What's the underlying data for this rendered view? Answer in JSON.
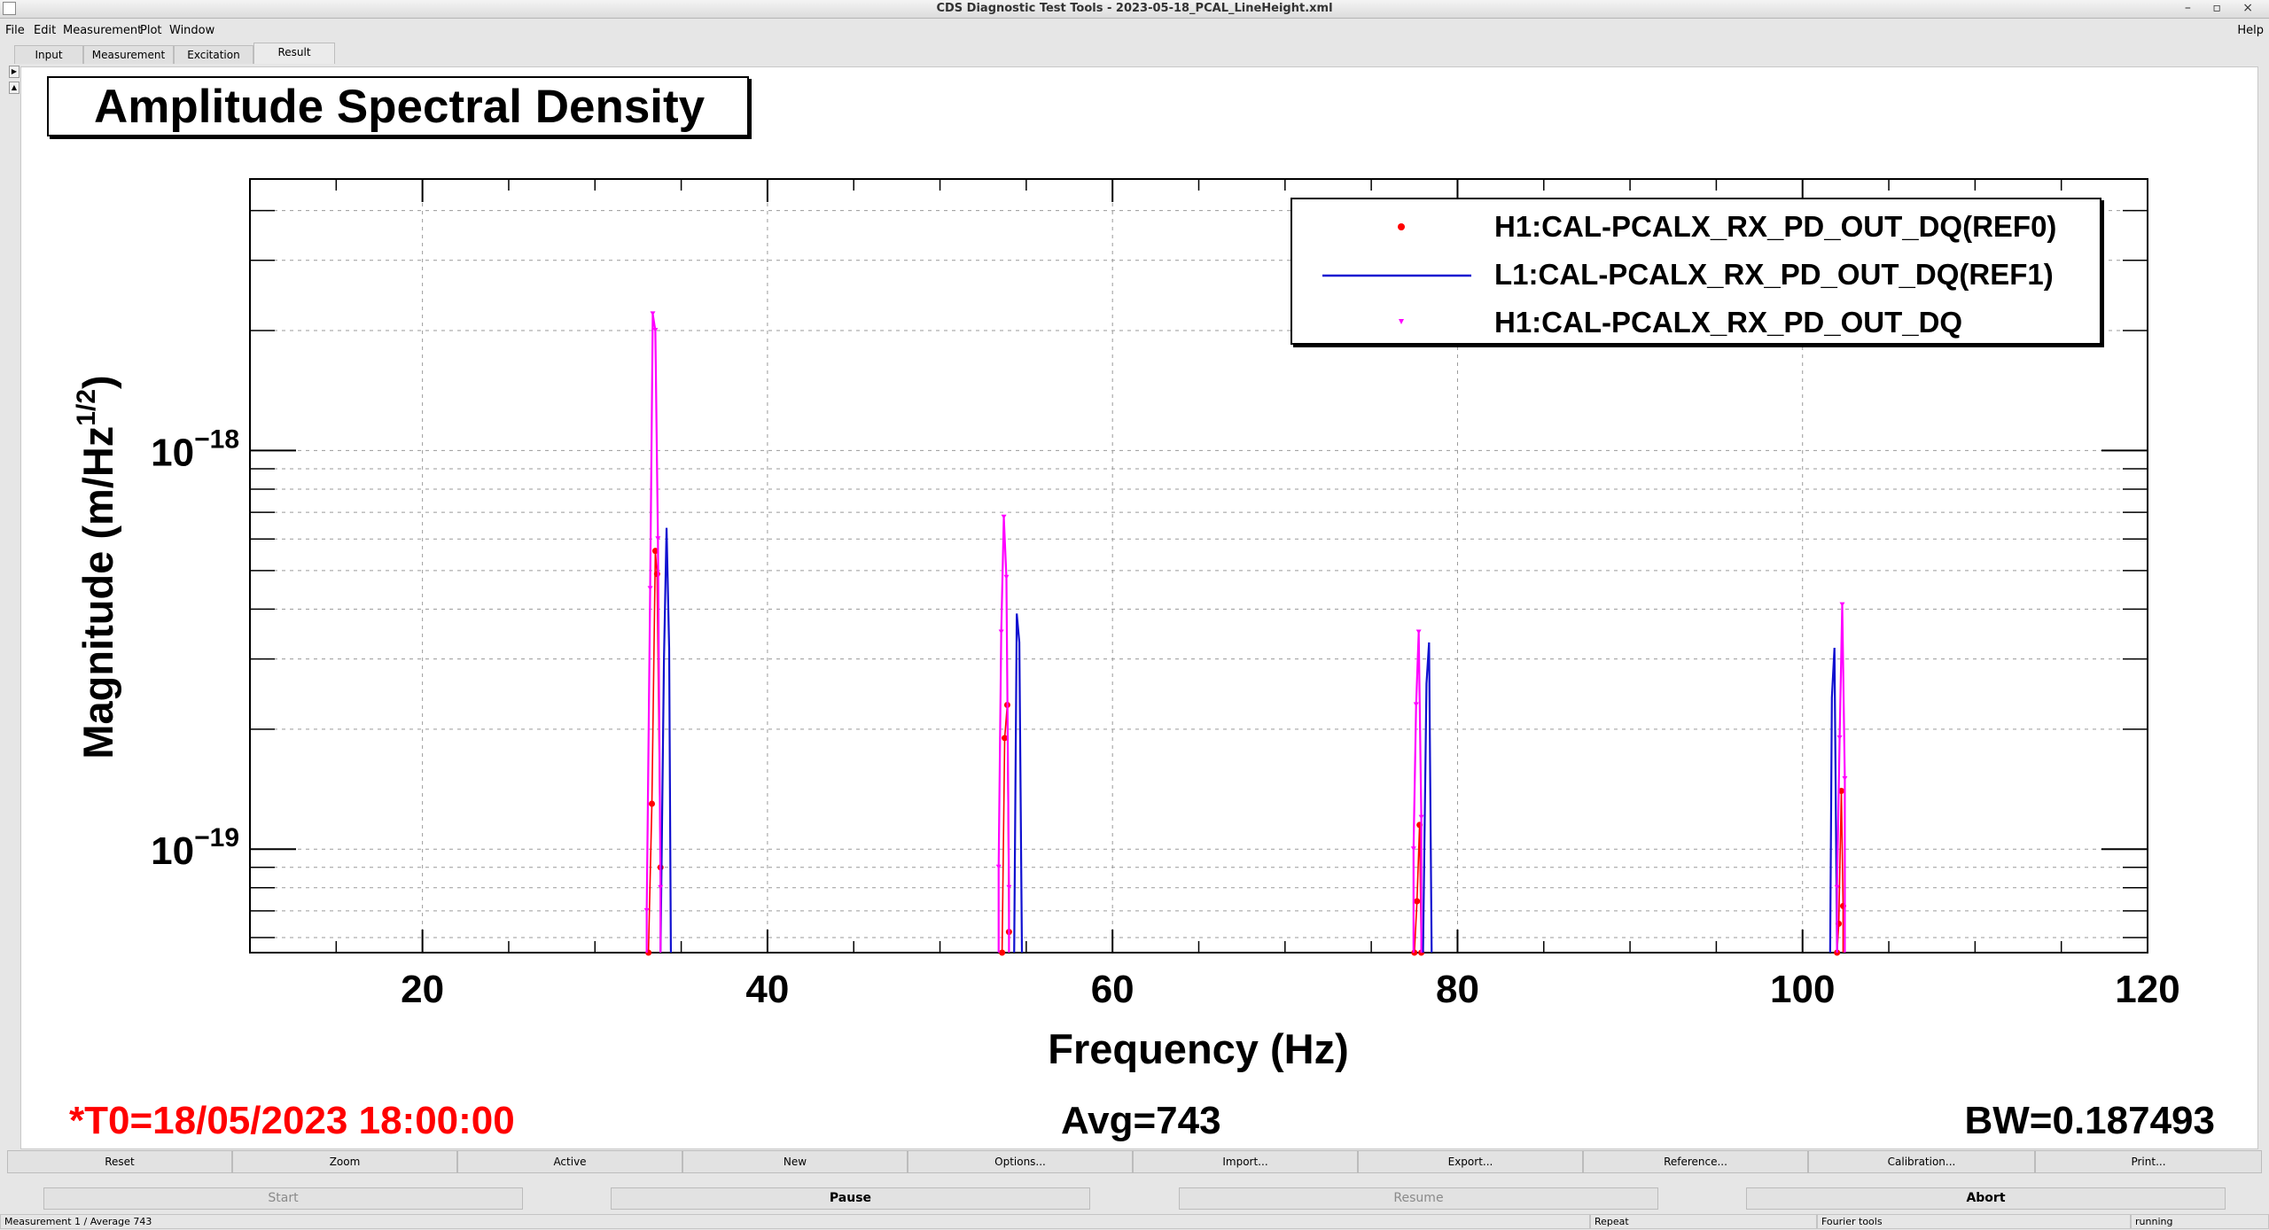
{
  "window": {
    "title": "CDS Diagnostic Test Tools - 2023-05-18_PCAL_LineHeight.xml",
    "controls": "– ▫ ×"
  },
  "menu": {
    "items": [
      "File",
      "Edit",
      "Measurement",
      "Plot",
      "Window"
    ],
    "help": "Help"
  },
  "tabs": [
    "Input",
    "Measurement",
    "Excitation",
    "Result"
  ],
  "active_tab": "Result",
  "plot": {
    "title": "Amplitude Spectral Density",
    "t0": "*T0=18/05/2023 18:00:00",
    "avg": "Avg=743",
    "bw": "BW=0.187493"
  },
  "chart_data": {
    "type": "line",
    "title": "Amplitude Spectral Density",
    "xlabel": "Frequency (Hz)",
    "ylabel": "Magnitude (m/Hz^1/2)",
    "ylabel_main": "Magnitude (m/Hz",
    "ylabel_sup": "1/2",
    "ylabel_close": ")",
    "xlim": [
      10,
      120
    ],
    "ylim": [
      5.5e-20,
      4.8e-18
    ],
    "yscale": "log",
    "x_ticks": [
      20,
      40,
      60,
      80,
      100,
      120
    ],
    "y_ticks": [
      {
        "base": "10",
        "exp": "−18",
        "value": 1e-18
      },
      {
        "base": "10",
        "exp": "−19",
        "value": 1e-19
      }
    ],
    "grid": true,
    "legend_position": "top-right",
    "series": [
      {
        "name": "H1:CAL-PCALX_RX_PD_OUT_DQ(REF0)",
        "color": "#ff0000",
        "style": "markers",
        "peaks": [
          {
            "x": [
              33.1,
              33.3,
              33.5,
              33.6,
              33.8
            ],
            "y": [
              5.5e-20,
              1.3e-19,
              5.6e-19,
              4.9e-19,
              9e-20
            ]
          },
          {
            "x": [
              53.6,
              53.75,
              53.9,
              54.0
            ],
            "y": [
              5.5e-20,
              1.9e-19,
              2.3e-19,
              6.2e-20
            ]
          },
          {
            "x": [
              77.5,
              77.65,
              77.8,
              77.9
            ],
            "y": [
              5.5e-20,
              7.4e-20,
              1.15e-19,
              5.5e-20
            ]
          },
          {
            "x": [
              102.0,
              102.1,
              102.25,
              102.35
            ],
            "y": [
              5.5e-20,
              6.5e-20,
              1.4e-19,
              7.2e-20
            ]
          }
        ]
      },
      {
        "name": "L1:CAL-PCALX_RX_PD_OUT_DQ(REF1)",
        "color": "#1010d0",
        "style": "line",
        "peaks": [
          {
            "x": [
              33.8,
              34.0,
              34.15,
              34.3,
              34.4
            ],
            "y": [
              5.5e-20,
              3e-19,
              6.4e-19,
              3.2e-19,
              5.5e-20
            ]
          },
          {
            "x": [
              54.3,
              54.45,
              54.6,
              54.75
            ],
            "y": [
              5.5e-20,
              3.9e-19,
              3.3e-19,
              5.5e-20
            ]
          },
          {
            "x": [
              78.0,
              78.2,
              78.35,
              78.5
            ],
            "y": [
              5.5e-20,
              2.6e-19,
              3.3e-19,
              5.5e-20
            ]
          },
          {
            "x": [
              101.6,
              101.7,
              101.85,
              102.0
            ],
            "y": [
              5.5e-20,
              2.4e-19,
              3.2e-19,
              5.5e-20
            ]
          }
        ]
      },
      {
        "name": "H1:CAL-PCALX_RX_PD_OUT_DQ",
        "color": "#ff00ff",
        "style": "line+markers",
        "peaks": [
          {
            "x": [
              33.0,
              33.2,
              33.35,
              33.5,
              33.65,
              33.8
            ],
            "y": [
              7e-20,
              4.5e-19,
              2.2e-18,
              2e-18,
              6e-19,
              8e-20
            ]
          },
          {
            "x": [
              53.4,
              53.55,
              53.7,
              53.85,
              54.0
            ],
            "y": [
              9e-20,
              3.5e-19,
              6.8e-19,
              4.8e-19,
              8e-20
            ]
          },
          {
            "x": [
              77.45,
              77.6,
              77.75,
              77.9
            ],
            "y": [
              1e-19,
              2.3e-19,
              3.5e-19,
              1.2e-19
            ]
          },
          {
            "x": [
              102.0,
              102.15,
              102.3,
              102.45
            ],
            "y": [
              8e-20,
              1.9e-19,
              4.1e-19,
              1.5e-19
            ]
          }
        ]
      }
    ]
  },
  "buttons_row1": [
    "Reset",
    "Zoom",
    "Active",
    "New",
    "Options...",
    "Import...",
    "Export...",
    "Reference...",
    "Calibration...",
    "Print..."
  ],
  "buttons_row2": [
    "Start",
    "Pause",
    "Resume",
    "Abort"
  ],
  "status": [
    "Measurement 1 / Average 743",
    "Repeat",
    "Fourier tools",
    "running"
  ]
}
